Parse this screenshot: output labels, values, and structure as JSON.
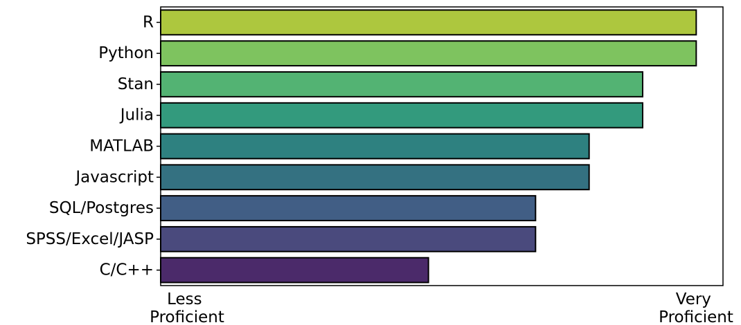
{
  "chart_data": {
    "type": "bar",
    "orientation": "horizontal",
    "categories": [
      "R",
      "Python",
      "Stan",
      "Julia",
      "MATLAB",
      "Javascript",
      "SQL/Postgres",
      "SPSS/Excel/JASP",
      "C/C++"
    ],
    "values": [
      10,
      10,
      9,
      9,
      8,
      8,
      7,
      7,
      5
    ],
    "colors": [
      "#adc73e",
      "#7ec35f",
      "#53b373",
      "#339a7d",
      "#2e8180",
      "#347181",
      "#415e85",
      "#4a4a7d",
      "#4b2a6a"
    ],
    "xlim": [
      0,
      10.5
    ],
    "x_endpoint_labels": {
      "low": [
        "Less",
        "Proficient"
      ],
      "high": [
        "Very",
        "Proficient"
      ]
    },
    "grid": false,
    "legend": "none"
  }
}
